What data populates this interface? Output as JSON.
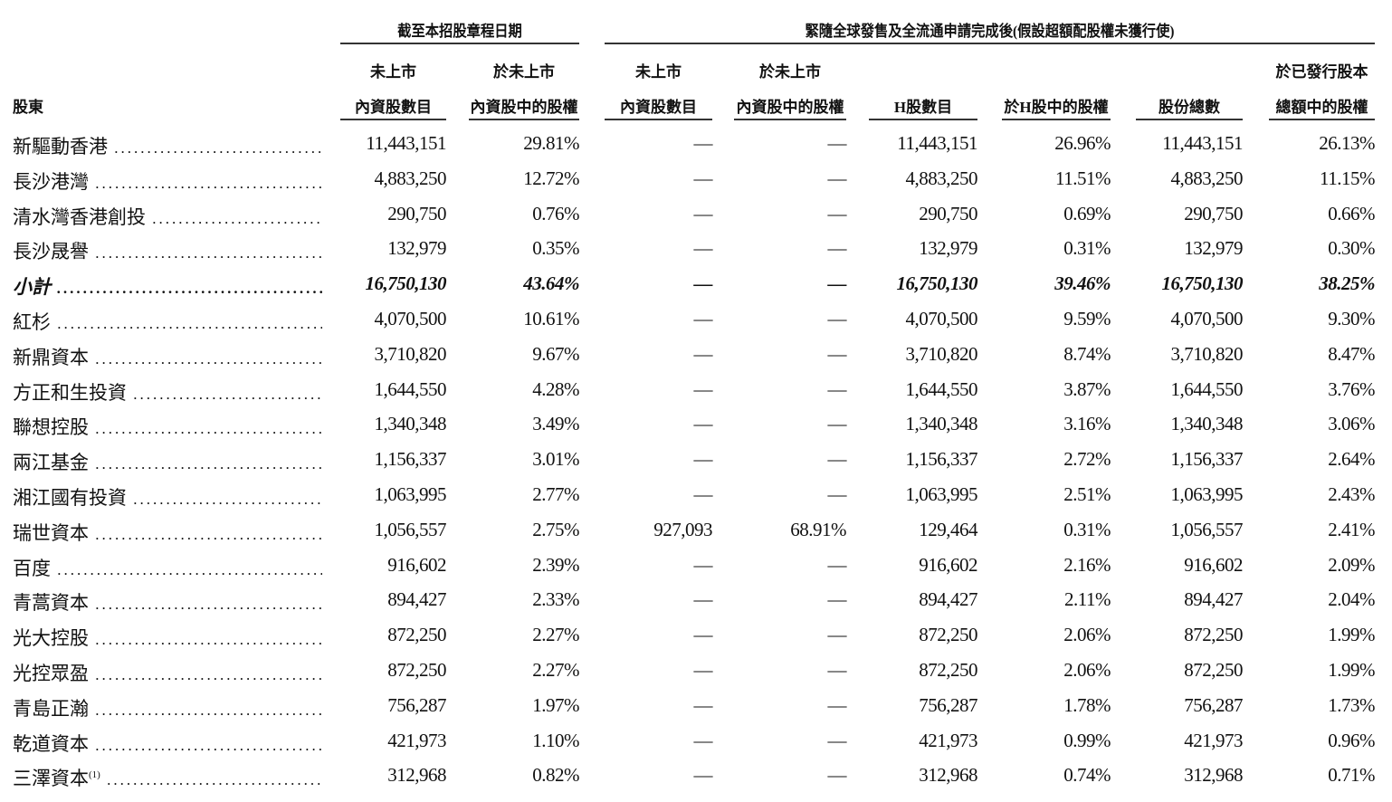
{
  "header": {
    "shareholder_label": "股東",
    "group1_title": "截至本招股章程日期",
    "group2_title": "緊隨全球發售及全流通申請完成後(假設超額配股權未獲行使)",
    "columns": [
      [
        "未上市",
        "內資股數目"
      ],
      [
        "於未上市",
        "內資股中的股權"
      ],
      [
        "未上市",
        "內資股數目"
      ],
      [
        "於未上市",
        "內資股中的股權"
      ],
      [
        "",
        "H股數目"
      ],
      [
        "",
        "於H股中的股權"
      ],
      [
        "",
        "股份總數"
      ],
      [
        "於已發行股本",
        "總額中的股權"
      ]
    ]
  },
  "rows": [
    {
      "name": "新驅動香港",
      "values": [
        "11,443,151",
        "29.81%",
        "—",
        "—",
        "11,443,151",
        "26.96%",
        "11,443,151",
        "26.13%"
      ]
    },
    {
      "name": "長沙港灣",
      "values": [
        "4,883,250",
        "12.72%",
        "—",
        "—",
        "4,883,250",
        "11.51%",
        "4,883,250",
        "11.15%"
      ]
    },
    {
      "name": "清水灣香港創投",
      "values": [
        "290,750",
        "0.76%",
        "—",
        "—",
        "290,750",
        "0.69%",
        "290,750",
        "0.66%"
      ]
    },
    {
      "name": "長沙晟譽",
      "values": [
        "132,979",
        "0.35%",
        "—",
        "—",
        "132,979",
        "0.31%",
        "132,979",
        "0.30%"
      ]
    },
    {
      "name": "小計",
      "subtotal": true,
      "values": [
        "16,750,130",
        "43.64%",
        "—",
        "—",
        "16,750,130",
        "39.46%",
        "16,750,130",
        "38.25%"
      ]
    },
    {
      "name": "紅杉",
      "values": [
        "4,070,500",
        "10.61%",
        "—",
        "—",
        "4,070,500",
        "9.59%",
        "4,070,500",
        "9.30%"
      ]
    },
    {
      "name": "新鼎資本",
      "values": [
        "3,710,820",
        "9.67%",
        "—",
        "—",
        "3,710,820",
        "8.74%",
        "3,710,820",
        "8.47%"
      ]
    },
    {
      "name": "方正和生投資",
      "values": [
        "1,644,550",
        "4.28%",
        "—",
        "—",
        "1,644,550",
        "3.87%",
        "1,644,550",
        "3.76%"
      ]
    },
    {
      "name": "聯想控股",
      "values": [
        "1,340,348",
        "3.49%",
        "—",
        "—",
        "1,340,348",
        "3.16%",
        "1,340,348",
        "3.06%"
      ]
    },
    {
      "name": "兩江基金",
      "values": [
        "1,156,337",
        "3.01%",
        "—",
        "—",
        "1,156,337",
        "2.72%",
        "1,156,337",
        "2.64%"
      ]
    },
    {
      "name": "湘江國有投資",
      "values": [
        "1,063,995",
        "2.77%",
        "—",
        "—",
        "1,063,995",
        "2.51%",
        "1,063,995",
        "2.43%"
      ]
    },
    {
      "name": "瑞世資本",
      "values": [
        "1,056,557",
        "2.75%",
        "927,093",
        "68.91%",
        "129,464",
        "0.31%",
        "1,056,557",
        "2.41%"
      ]
    },
    {
      "name": "百度",
      "values": [
        "916,602",
        "2.39%",
        "—",
        "—",
        "916,602",
        "2.16%",
        "916,602",
        "2.09%"
      ]
    },
    {
      "name": "青蒿資本",
      "values": [
        "894,427",
        "2.33%",
        "—",
        "—",
        "894,427",
        "2.11%",
        "894,427",
        "2.04%"
      ]
    },
    {
      "name": "光大控股",
      "values": [
        "872,250",
        "2.27%",
        "—",
        "—",
        "872,250",
        "2.06%",
        "872,250",
        "1.99%"
      ]
    },
    {
      "name": "光控眾盈",
      "values": [
        "872,250",
        "2.27%",
        "—",
        "—",
        "872,250",
        "2.06%",
        "872,250",
        "1.99%"
      ]
    },
    {
      "name": "青島正瀚",
      "values": [
        "756,287",
        "1.97%",
        "—",
        "—",
        "756,287",
        "1.78%",
        "756,287",
        "1.73%"
      ]
    },
    {
      "name": "乾道資本",
      "values": [
        "421,973",
        "1.10%",
        "—",
        "—",
        "421,973",
        "0.99%",
        "421,973",
        "0.96%"
      ]
    },
    {
      "name": "三澤資本",
      "note": "(1)",
      "values": [
        "312,968",
        "0.82%",
        "—",
        "—",
        "312,968",
        "0.74%",
        "312,968",
        "0.71%"
      ]
    }
  ]
}
